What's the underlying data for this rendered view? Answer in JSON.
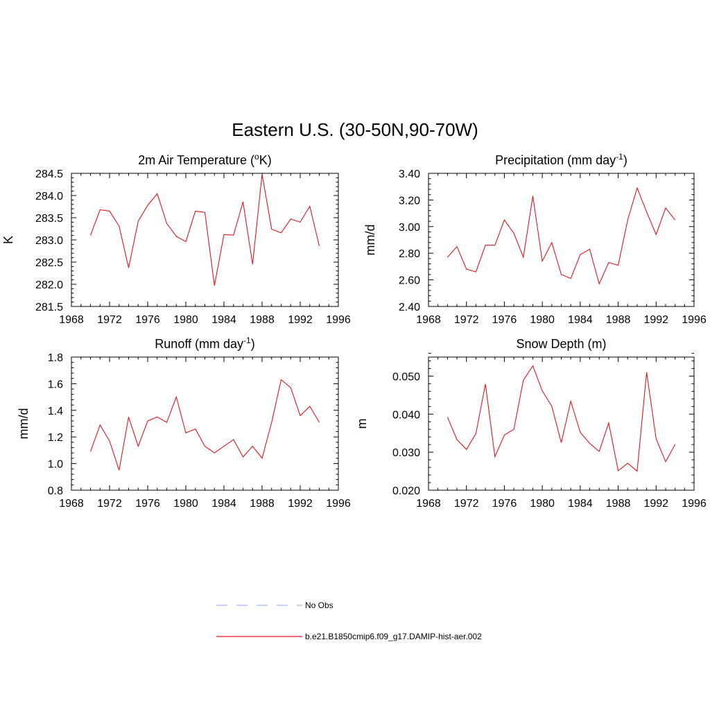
{
  "figure": {
    "title": "Eastern U.S. (30-50N,90-70W)"
  },
  "chart_data": [
    {
      "type": "line",
      "title": "2m Air Temperature (",
      "title_sup": "o",
      "title_after": "K)",
      "ylabel": "K",
      "xlim": [
        1968,
        1996
      ],
      "ylim": [
        281.5,
        284.5
      ],
      "xticks": [
        1968,
        1972,
        1976,
        1980,
        1984,
        1988,
        1992,
        1996
      ],
      "yticks": [
        281.5,
        282.0,
        282.5,
        283.0,
        283.5,
        284.0,
        284.5
      ],
      "ytick_labels": [
        "281.5",
        "282.0",
        "282.5",
        "283.0",
        "283.5",
        "284.0",
        "284.5"
      ],
      "grid": false,
      "series": [
        {
          "color": "#e8141c",
          "x": [
            1970,
            1971,
            1972,
            1973,
            1974,
            1975,
            1976,
            1977,
            1978,
            1979,
            1980,
            1981,
            1982,
            1983,
            1984,
            1985,
            1986,
            1987,
            1988,
            1989,
            1990,
            1991,
            1992,
            1993,
            1994
          ],
          "y": [
            283.1,
            283.68,
            283.65,
            283.31,
            282.37,
            283.42,
            283.78,
            284.04,
            283.37,
            283.08,
            282.96,
            283.65,
            283.62,
            281.97,
            283.12,
            283.11,
            283.86,
            282.45,
            284.48,
            283.24,
            283.16,
            283.47,
            283.4,
            283.76,
            282.86
          ]
        }
      ]
    },
    {
      "type": "line",
      "title": "Precipitation (mm day",
      "title_sup": "-1",
      "title_after": ")",
      "ylabel": "mm/d",
      "xlim": [
        1968,
        1996
      ],
      "ylim": [
        2.4,
        3.4
      ],
      "xticks": [
        1968,
        1972,
        1976,
        1980,
        1984,
        1988,
        1992,
        1996
      ],
      "yticks": [
        2.4,
        2.6,
        2.8,
        3.0,
        3.2,
        3.4
      ],
      "ytick_labels": [
        "2.40",
        "2.60",
        "2.80",
        "3.00",
        "3.20",
        "3.40"
      ],
      "grid": false,
      "series": [
        {
          "color": "#e8141c",
          "x": [
            1970,
            1971,
            1972,
            1973,
            1974,
            1975,
            1976,
            1977,
            1978,
            1979,
            1980,
            1981,
            1982,
            1983,
            1984,
            1985,
            1986,
            1987,
            1988,
            1989,
            1990,
            1991,
            1992,
            1993,
            1994
          ],
          "y": [
            2.77,
            2.85,
            2.68,
            2.66,
            2.86,
            2.86,
            3.05,
            2.95,
            2.77,
            3.23,
            2.74,
            2.88,
            2.64,
            2.61,
            2.79,
            2.83,
            2.57,
            2.73,
            2.71,
            3.05,
            3.29,
            3.11,
            2.94,
            3.14,
            3.05
          ]
        }
      ]
    },
    {
      "type": "line",
      "title": "Runoff (mm day",
      "title_sup": "-1",
      "title_after": ")",
      "ylabel": "mm/d",
      "xlim": [
        1968,
        1996
      ],
      "ylim": [
        0.8,
        1.8
      ],
      "xticks": [
        1968,
        1972,
        1976,
        1980,
        1984,
        1988,
        1992,
        1996
      ],
      "yticks": [
        0.8,
        1.0,
        1.2,
        1.4,
        1.6,
        1.8
      ],
      "ytick_labels": [
        "0.8",
        "1.0",
        "1.2",
        "1.4",
        "1.6",
        "1.8"
      ],
      "grid": false,
      "series": [
        {
          "color": "#e8141c",
          "x": [
            1970,
            1971,
            1972,
            1973,
            1974,
            1975,
            1976,
            1977,
            1978,
            1979,
            1980,
            1981,
            1982,
            1983,
            1984,
            1985,
            1986,
            1987,
            1988,
            1989,
            1990,
            1991,
            1992,
            1993,
            1994
          ],
          "y": [
            1.09,
            1.29,
            1.17,
            0.95,
            1.35,
            1.13,
            1.32,
            1.35,
            1.31,
            1.5,
            1.23,
            1.26,
            1.13,
            1.08,
            1.13,
            1.18,
            1.05,
            1.13,
            1.04,
            1.31,
            1.63,
            1.57,
            1.36,
            1.43,
            1.31
          ]
        }
      ]
    },
    {
      "type": "line",
      "title": "Snow Depth (m)",
      "title_sup": "",
      "title_after": "",
      "ylabel": "m",
      "xlim": [
        1968,
        1996
      ],
      "ylim": [
        0.02,
        0.055
      ],
      "xticks": [
        1968,
        1972,
        1976,
        1980,
        1984,
        1988,
        1992,
        1996
      ],
      "yticks": [
        0.02,
        0.03,
        0.04,
        0.05
      ],
      "ytick_labels": [
        "0.020",
        "0.030",
        "0.040",
        "0.050"
      ],
      "grid": false,
      "series": [
        {
          "color": "#e8141c",
          "x": [
            1970,
            1971,
            1972,
            1973,
            1974,
            1975,
            1976,
            1977,
            1978,
            1979,
            1980,
            1981,
            1982,
            1983,
            1984,
            1985,
            1986,
            1987,
            1988,
            1989,
            1990,
            1991,
            1992,
            1993,
            1994
          ],
          "y": [
            0.0392,
            0.0333,
            0.0307,
            0.0349,
            0.0479,
            0.0288,
            0.0345,
            0.036,
            0.0489,
            0.0527,
            0.0461,
            0.0421,
            0.0325,
            0.0434,
            0.0352,
            0.0323,
            0.0302,
            0.0377,
            0.0251,
            0.0271,
            0.025,
            0.051,
            0.0335,
            0.0275,
            0.032
          ]
        }
      ]
    }
  ],
  "legend": {
    "items": [
      {
        "label": "No Obs",
        "style": "dashed",
        "color": "#a9b4f0"
      },
      {
        "label": "b.e21.B1850cmip6.f09_g17.DAMIP-hist-aer.002",
        "style": "solid",
        "color": "#e8141c"
      }
    ]
  }
}
